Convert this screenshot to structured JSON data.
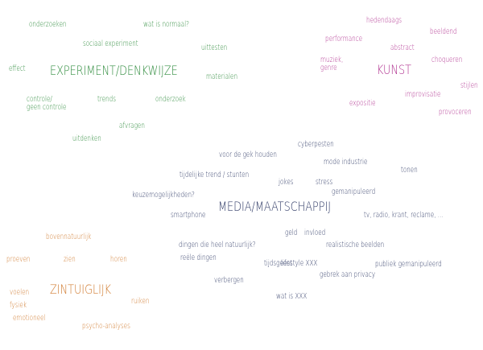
{
  "colors": {
    "experiment": "#2e8b3c",
    "kunst": "#b0308f",
    "media": "#2f3a66",
    "zintuiglijk": "#d07a2e"
  },
  "clusters": [
    {
      "id": "experiment",
      "words": [
        "onderzoeken",
        "wat is normaal?",
        "sociaal experiment",
        "uittesten",
        "effect",
        "EXPERIMENT/DENKWIJZE",
        "materialen",
        "controle/\ngeen controle",
        "trends",
        "onderzoek",
        "afvragen",
        "uitdenken"
      ]
    },
    {
      "id": "kunst",
      "words": [
        "hedendaags",
        "performance",
        "abstract",
        "beeldend",
        "muziek,\ngenre",
        "KUNST",
        "choqueren",
        "stijlen",
        "improvisatie",
        "expositie",
        "provoceren"
      ]
    },
    {
      "id": "media",
      "words": [
        "cyberpesten",
        "voor de gek houden",
        "mode industrie",
        "tijdelijke trend / stunten",
        "tonen",
        "jokes",
        "stress",
        "gemanipuleerd",
        "keuzemogelijkheden?",
        "MEDIA/MAATSCHAPPIJ",
        "smartphone",
        "tv, radio, krant, reclame, ...",
        "geld",
        "invloed",
        "dingen die heel natuurlijk?",
        "realistische beelden",
        "reële dingen",
        "tijdsgeest",
        "lifestyle XXX",
        "publiek gemanipuleerd",
        "gebrek aan privacy",
        "verbergen",
        "wat is XXX"
      ]
    },
    {
      "id": "zintuiglijk",
      "words": [
        "bovennatuurlijk",
        "proeven",
        "zien",
        "horen",
        "ZINTUIGLIJK",
        "voelen",
        "fysiek",
        "emotioneel",
        "ruiken",
        "psycho-analyses"
      ]
    }
  ]
}
